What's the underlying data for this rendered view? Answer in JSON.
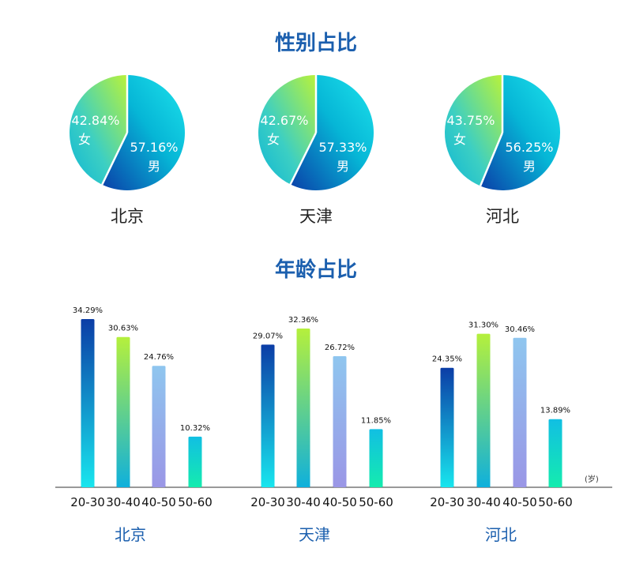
{
  "gender_title": "性别占比",
  "age_title": "年龄占比",
  "age_unit": "(岁)",
  "colors": {
    "title": "#1b5fae",
    "male_gradient": [
      "#0a3fa8",
      "#06b6d6",
      "#1ee3ec"
    ],
    "female_gradient": [
      "#b9f23a",
      "#3ccfc3",
      "#0fb6d4"
    ]
  },
  "chart_data": [
    {
      "type": "pie",
      "region": "北京",
      "slices": [
        {
          "label": "男",
          "value": 57.16,
          "value_text": "57.16%"
        },
        {
          "label": "女",
          "value": 42.84,
          "value_text": "42.84%"
        }
      ]
    },
    {
      "type": "pie",
      "region": "天津",
      "slices": [
        {
          "label": "男",
          "value": 57.33,
          "value_text": "57.33%"
        },
        {
          "label": "女",
          "value": 42.67,
          "value_text": "42.67%"
        }
      ]
    },
    {
      "type": "pie",
      "region": "河北",
      "slices": [
        {
          "label": "男",
          "value": 56.25,
          "value_text": "56.25%"
        },
        {
          "label": "女",
          "value": 43.75,
          "value_text": "43.75%"
        }
      ]
    },
    {
      "type": "bar",
      "region": "北京",
      "categories": [
        "20-30",
        "30-40",
        "40-50",
        "50-60"
      ],
      "values": [
        34.29,
        30.63,
        24.76,
        10.32
      ],
      "labels": [
        "34.29%",
        "30.63%",
        "24.76%",
        "10.32%"
      ]
    },
    {
      "type": "bar",
      "region": "天津",
      "categories": [
        "20-30",
        "30-40",
        "40-50",
        "50-60"
      ],
      "values": [
        29.07,
        32.36,
        26.72,
        11.85
      ],
      "labels": [
        "29.07%",
        "32.36%",
        "26.72%",
        "11.85%"
      ]
    },
    {
      "type": "bar",
      "region": "河北",
      "categories": [
        "20-30",
        "30-40",
        "40-50",
        "50-60"
      ],
      "values": [
        24.35,
        31.3,
        30.46,
        13.89
      ],
      "labels": [
        "24.35%",
        "31.30%",
        "30.46%",
        "13.89%"
      ]
    }
  ]
}
